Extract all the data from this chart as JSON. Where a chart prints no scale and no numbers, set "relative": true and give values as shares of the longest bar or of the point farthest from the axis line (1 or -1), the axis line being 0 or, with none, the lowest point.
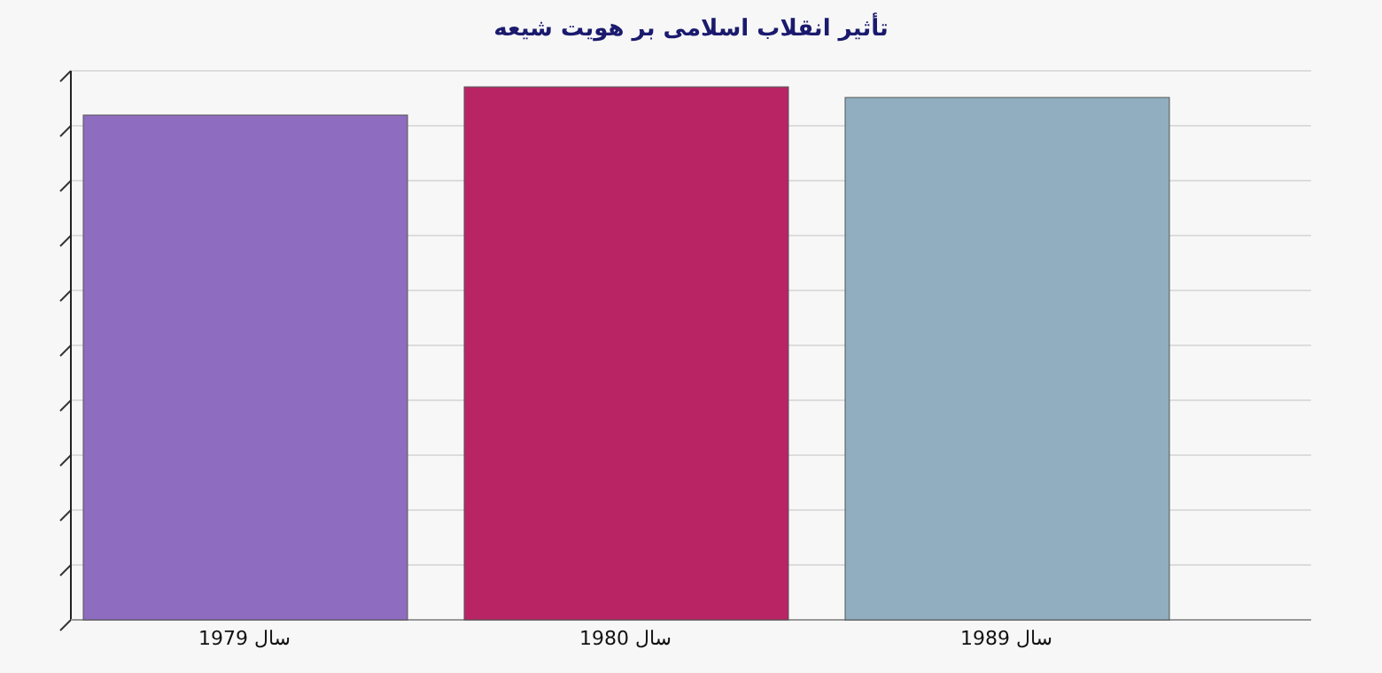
{
  "chart_data": {
    "type": "bar",
    "title": "تأثیر انقلاب اسلامی بر هویت شیعه",
    "categories": [
      "سال 1979",
      "سال 1980",
      "سال 1989"
    ],
    "values": [
      0.947,
      1,
      0.98
    ],
    "colors": [
      "#8e6cc0",
      "#b82464",
      "#90aec0"
    ],
    "relative": true,
    "grid": "y"
  }
}
